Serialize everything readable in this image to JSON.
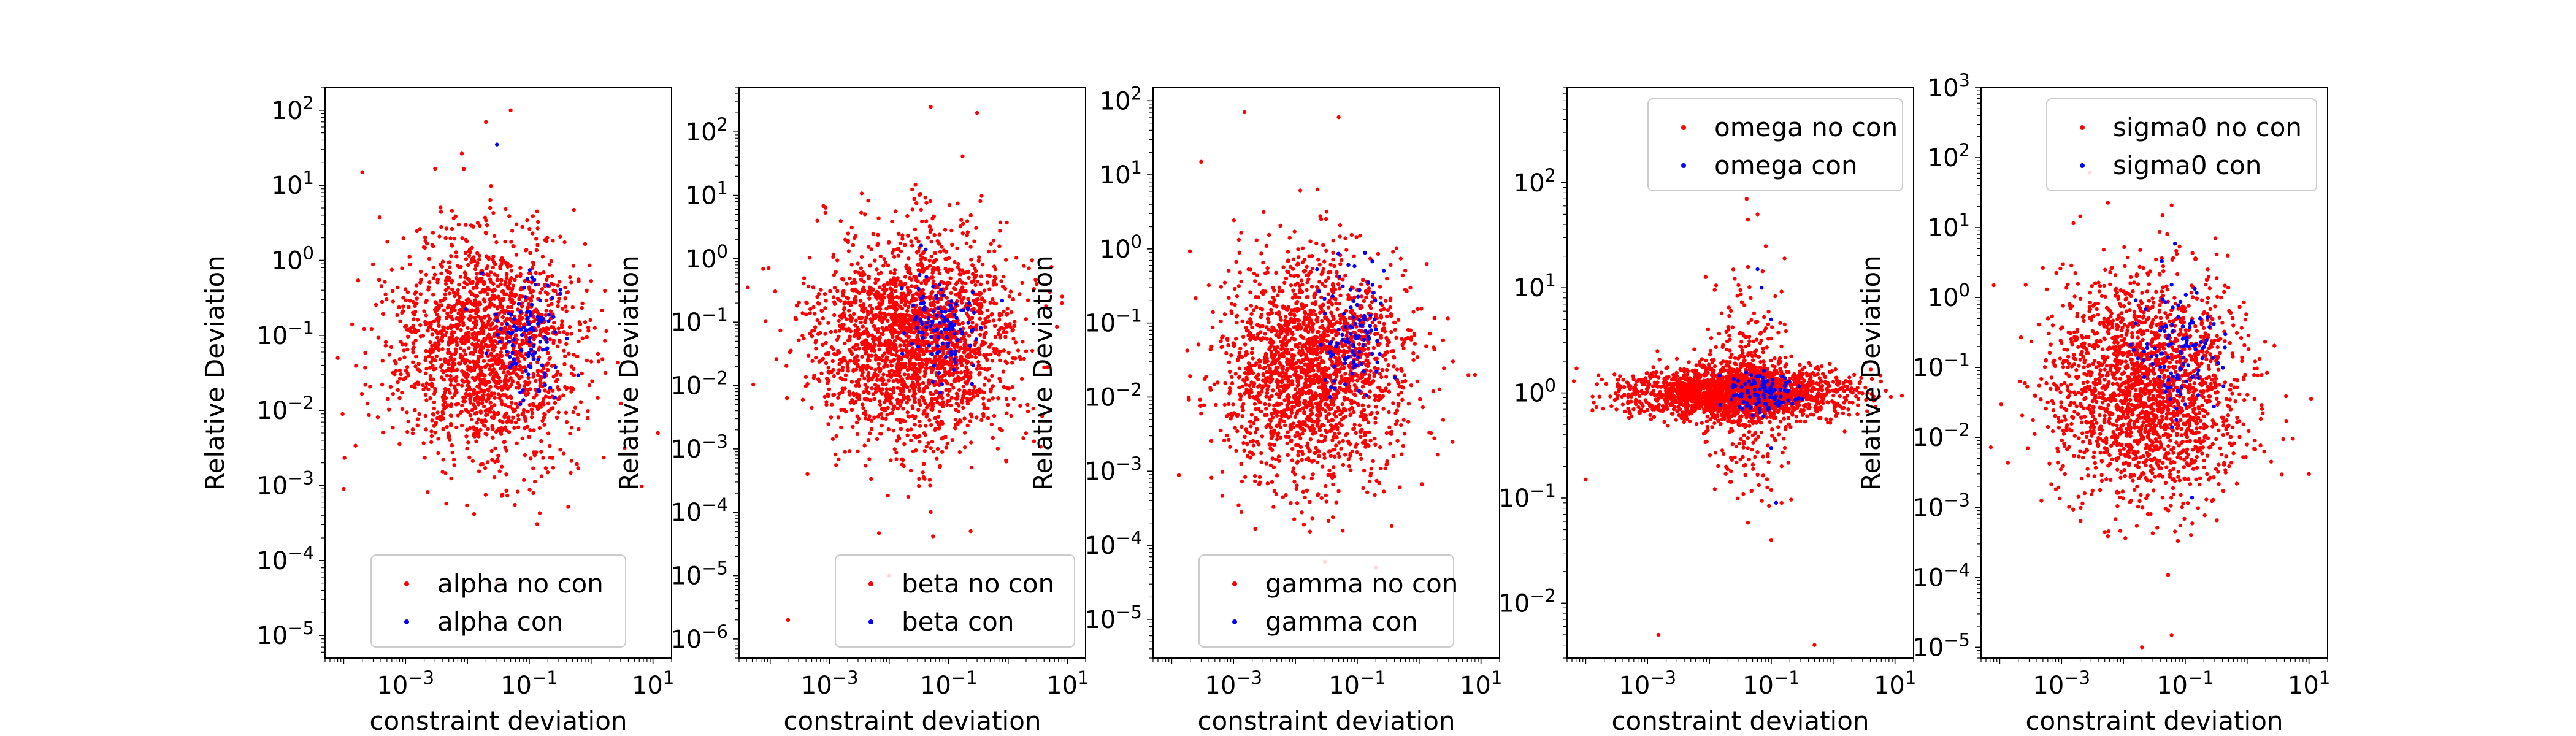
{
  "chart_data": [
    {
      "type": "scatter",
      "xlabel": "constraint deviation",
      "ylabel": "Relative Deviation",
      "xscale": "log",
      "yscale": "log",
      "xlim": [
        5e-05,
        20
      ],
      "ylim": [
        5e-06,
        200
      ],
      "xticks": [
        {
          "value": 0.001,
          "base": "10",
          "exp": "−3"
        },
        {
          "value": 0.1,
          "base": "10",
          "exp": "−1"
        },
        {
          "value": 10,
          "base": "10",
          "exp": "1"
        }
      ],
      "yticks": [
        {
          "value": 1e-05,
          "base": "10",
          "exp": "−5"
        },
        {
          "value": 0.0001,
          "base": "10",
          "exp": "−4"
        },
        {
          "value": 0.001,
          "base": "10",
          "exp": "−3"
        },
        {
          "value": 0.01,
          "base": "10",
          "exp": "−2"
        },
        {
          "value": 0.1,
          "base": "10",
          "exp": "−1"
        },
        {
          "value": 1,
          "base": "10",
          "exp": "0"
        },
        {
          "value": 10,
          "base": "10",
          "exp": "1"
        },
        {
          "value": 100,
          "base": "10",
          "exp": "2"
        }
      ],
      "legend_position": "lower-center",
      "series": [
        {
          "name": "alpha no con",
          "color": "#ff0000",
          "cloud": {
            "x_center": 0.02,
            "x_spread_decades": 0.75,
            "y_center": 0.07,
            "y_spread_decades": 0.75,
            "count": 1800
          },
          "points": [
            [
              0.0002,
              15
            ],
            [
              0.02,
              70
            ],
            [
              0.05,
              100
            ],
            [
              0.0001,
              0.0009
            ],
            [
              0.03,
              5e-05
            ],
            [
              0.8,
              0.15
            ],
            [
              12,
              0.005
            ],
            [
              8e-05,
              0.05
            ]
          ]
        },
        {
          "name": "alpha con",
          "color": "#0000ff",
          "cloud": {
            "x_center": 0.1,
            "x_spread_decades": 0.3,
            "y_center": 0.1,
            "y_spread_decades": 0.45,
            "count": 110
          },
          "points": [
            [
              0.03,
              35
            ]
          ]
        }
      ]
    },
    {
      "type": "scatter",
      "xlabel": "constraint deviation",
      "ylabel": "Relative Deviation",
      "xscale": "log",
      "yscale": "log",
      "xlim": [
        3e-05,
        20
      ],
      "ylim": [
        5e-07,
        500
      ],
      "xticks": [
        {
          "value": 0.001,
          "base": "10",
          "exp": "−3"
        },
        {
          "value": 0.1,
          "base": "10",
          "exp": "−1"
        },
        {
          "value": 10,
          "base": "10",
          "exp": "1"
        }
      ],
      "yticks": [
        {
          "value": 1e-06,
          "base": "10",
          "exp": "−6"
        },
        {
          "value": 1e-05,
          "base": "10",
          "exp": "−5"
        },
        {
          "value": 0.0001,
          "base": "10",
          "exp": "−4"
        },
        {
          "value": 0.001,
          "base": "10",
          "exp": "−3"
        },
        {
          "value": 0.01,
          "base": "10",
          "exp": "−2"
        },
        {
          "value": 0.1,
          "base": "10",
          "exp": "−1"
        },
        {
          "value": 1,
          "base": "10",
          "exp": "0"
        },
        {
          "value": 10,
          "base": "10",
          "exp": "1"
        },
        {
          "value": 100,
          "base": "10",
          "exp": "2"
        }
      ],
      "legend_position": "lower-right",
      "series": [
        {
          "name": "beta no con",
          "color": "#ff0000",
          "cloud": {
            "x_center": 0.025,
            "x_spread_decades": 0.8,
            "y_center": 0.05,
            "y_spread_decades": 0.85,
            "count": 2200
          },
          "points": [
            [
              0.05,
              250
            ],
            [
              0.3,
              200
            ],
            [
              0.0002,
              2e-06
            ],
            [
              0.01,
              1e-05
            ],
            [
              5,
              0.3
            ],
            [
              8,
              0.2
            ],
            [
              3,
              0.4
            ]
          ]
        },
        {
          "name": "beta con",
          "color": "#0000ff",
          "cloud": {
            "x_center": 0.08,
            "x_spread_decades": 0.3,
            "y_center": 0.12,
            "y_spread_decades": 0.4,
            "count": 120
          },
          "points": []
        }
      ]
    },
    {
      "type": "scatter",
      "xlabel": "constraint deviation",
      "ylabel": "Relative Deviation",
      "xscale": "log",
      "yscale": "log",
      "xlim": [
        5e-05,
        20
      ],
      "ylim": [
        3e-06,
        150
      ],
      "xticks": [
        {
          "value": 0.001,
          "base": "10",
          "exp": "−3"
        },
        {
          "value": 0.1,
          "base": "10",
          "exp": "−1"
        },
        {
          "value": 10,
          "base": "10",
          "exp": "1"
        }
      ],
      "yticks": [
        {
          "value": 1e-05,
          "base": "10",
          "exp": "−5"
        },
        {
          "value": 0.0001,
          "base": "10",
          "exp": "−4"
        },
        {
          "value": 0.001,
          "base": "10",
          "exp": "−3"
        },
        {
          "value": 0.01,
          "base": "10",
          "exp": "−2"
        },
        {
          "value": 0.1,
          "base": "10",
          "exp": "−1"
        },
        {
          "value": 1,
          "base": "10",
          "exp": "0"
        },
        {
          "value": 10,
          "base": "10",
          "exp": "1"
        },
        {
          "value": 100,
          "base": "10",
          "exp": "2"
        }
      ],
      "legend_position": "lower-center",
      "series": [
        {
          "name": "gamma no con",
          "color": "#ff0000",
          "cloud": {
            "x_center": 0.02,
            "x_spread_decades": 0.75,
            "y_center": 0.025,
            "y_spread_decades": 0.75,
            "count": 2000
          },
          "points": [
            [
              0.0015,
              70
            ],
            [
              0.05,
              60
            ],
            [
              0.0003,
              15
            ],
            [
              0.2,
              5e-05
            ],
            [
              0.03,
              6e-05
            ],
            [
              8,
              0.02
            ]
          ]
        },
        {
          "name": "gamma con",
          "color": "#0000ff",
          "cloud": {
            "x_center": 0.08,
            "x_spread_decades": 0.3,
            "y_center": 0.08,
            "y_spread_decades": 0.45,
            "count": 100
          },
          "points": []
        }
      ]
    },
    {
      "type": "scatter",
      "xlabel": "constraint deviation",
      "ylabel": "",
      "xscale": "log",
      "yscale": "log",
      "xlim": [
        5e-05,
        20
      ],
      "ylim": [
        0.003,
        800
      ],
      "xticks": [
        {
          "value": 0.001,
          "base": "10",
          "exp": "−3"
        },
        {
          "value": 0.1,
          "base": "10",
          "exp": "−1"
        },
        {
          "value": 10,
          "base": "10",
          "exp": "1"
        }
      ],
      "yticks": [
        {
          "value": 0.01,
          "base": "10",
          "exp": "−2"
        },
        {
          "value": 0.1,
          "base": "10",
          "exp": "−1"
        },
        {
          "value": 1,
          "base": "10",
          "exp": "0"
        },
        {
          "value": 10,
          "base": "10",
          "exp": "1"
        },
        {
          "value": 100,
          "base": "10",
          "exp": "2"
        }
      ],
      "legend_position": "upper-right",
      "series": [
        {
          "name": "omega no con",
          "color": "#ff0000",
          "cloud": {
            "x_center": 0.03,
            "x_spread_decades": 0.85,
            "y_center": 1.0,
            "y_spread_decades": 0.12,
            "count": 2200
          },
          "extra_cloud": {
            "x_center": 0.04,
            "x_spread_decades": 0.3,
            "y_center": 1.0,
            "y_spread_decades": 0.5,
            "count": 350
          },
          "points": [
            [
              0.04,
              70
            ],
            [
              0.06,
              50
            ],
            [
              0.0015,
              0.005
            ],
            [
              0.5,
              0.004
            ],
            [
              0.1,
              0.04
            ],
            [
              0.0001,
              0.15
            ]
          ]
        },
        {
          "name": "omega con",
          "color": "#0000ff",
          "cloud": {
            "x_center": 0.08,
            "x_spread_decades": 0.3,
            "y_center": 1.0,
            "y_spread_decades": 0.1,
            "count": 110
          },
          "points": [
            [
              0.06,
              15
            ],
            [
              0.07,
              10
            ],
            [
              0.1,
              5
            ],
            [
              0.1,
              0.3
            ],
            [
              0.12,
              0.09
            ]
          ]
        }
      ]
    },
    {
      "type": "scatter",
      "xlabel": "constraint deviation",
      "ylabel": "Relative Deviation",
      "xscale": "log",
      "yscale": "log",
      "xlim": [
        5e-05,
        20
      ],
      "ylim": [
        7e-06,
        1000
      ],
      "xticks": [
        {
          "value": 0.001,
          "base": "10",
          "exp": "−3"
        },
        {
          "value": 0.1,
          "base": "10",
          "exp": "−1"
        },
        {
          "value": 10,
          "base": "10",
          "exp": "1"
        }
      ],
      "yticks": [
        {
          "value": 1e-05,
          "base": "10",
          "exp": "−5"
        },
        {
          "value": 0.0001,
          "base": "10",
          "exp": "−4"
        },
        {
          "value": 0.001,
          "base": "10",
          "exp": "−3"
        },
        {
          "value": 0.01,
          "base": "10",
          "exp": "−2"
        },
        {
          "value": 0.1,
          "base": "10",
          "exp": "−1"
        },
        {
          "value": 1,
          "base": "10",
          "exp": "0"
        },
        {
          "value": 10,
          "base": "10",
          "exp": "1"
        },
        {
          "value": 100,
          "base": "10",
          "exp": "2"
        },
        {
          "value": 1000,
          "base": "10",
          "exp": "3"
        }
      ],
      "legend_position": "upper-right",
      "series": [
        {
          "name": "sigma0 no con",
          "color": "#ff0000",
          "cloud": {
            "x_center": 0.025,
            "x_spread_decades": 0.75,
            "y_center": 0.05,
            "y_spread_decades": 0.8,
            "count": 2000
          },
          "points": [
            [
              0.02,
              1e-05
            ],
            [
              0.06,
              1.5e-05
            ],
            [
              0.01,
              5e-06
            ],
            [
              10,
              0.003
            ],
            [
              8e-05,
              1.5
            ]
          ]
        },
        {
          "name": "sigma0 con",
          "color": "#0000ff",
          "cloud": {
            "x_center": 0.08,
            "x_spread_decades": 0.3,
            "y_center": 0.15,
            "y_spread_decades": 0.5,
            "count": 110
          },
          "points": []
        }
      ]
    }
  ]
}
